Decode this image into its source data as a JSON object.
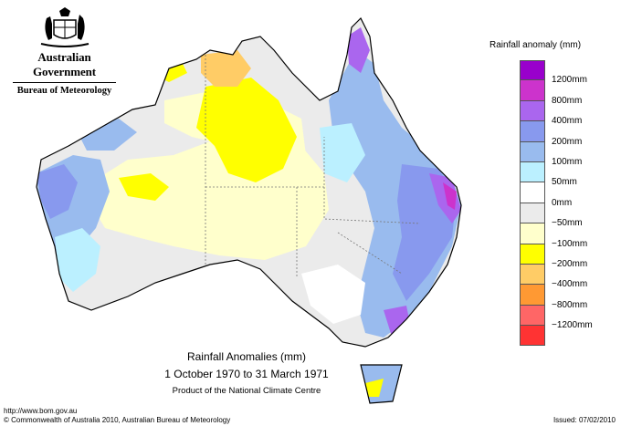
{
  "branding": {
    "government": "Australian Government",
    "bureau": "Bureau of Meteorology"
  },
  "legend": {
    "title": "Rainfall anomaly (mm)",
    "items": [
      {
        "label": "1200mm",
        "color": "#9900cc"
      },
      {
        "label": "800mm",
        "color": "#cc33cc"
      },
      {
        "label": "400mm",
        "color": "#aa66ee"
      },
      {
        "label": "200mm",
        "color": "#8899ee"
      },
      {
        "label": "100mm",
        "color": "#99bbee"
      },
      {
        "label": "50mm",
        "color": "#bbf0ff"
      },
      {
        "label": "0mm",
        "color": "#ffffff"
      },
      {
        "label": "−50mm",
        "color": "#ebebeb"
      },
      {
        "label": "−100mm",
        "color": "#ffffcc"
      },
      {
        "label": "−200mm",
        "color": "#ffff00"
      },
      {
        "label": "−400mm",
        "color": "#ffcc66"
      },
      {
        "label": "−800mm",
        "color": "#ff9933"
      },
      {
        "label": "−1200mm",
        "color": "#ff6666"
      }
    ],
    "bottom_color": "#ff3333"
  },
  "map": {
    "caption_title": "Rainfall Anomalies (mm)",
    "caption_period": "1 October 1970 to 31 March 1971",
    "caption_product": "Product of the National Climate Centre"
  },
  "footer": {
    "url": "http://www.bom.gov.au",
    "copyright": "© Commonwealth of Australia 2010, Australian Bureau of Meteorology",
    "issued": "Issued: 07/02/2010"
  }
}
